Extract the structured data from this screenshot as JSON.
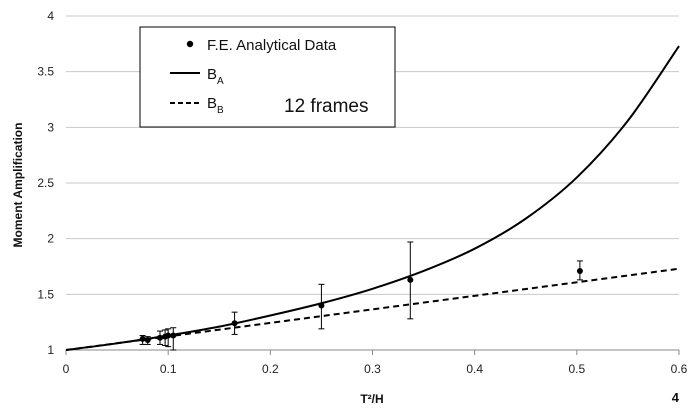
{
  "chart_data": {
    "type": "scatter",
    "xlabel": "T²/H",
    "ylabel": "Moment Amplification",
    "xlim": [
      0,
      0.6
    ],
    "ylim": [
      1,
      4
    ],
    "x_ticks": [
      "0",
      "0.1",
      "0.2",
      "0.3",
      "0.4",
      "0.5",
      "0.6"
    ],
    "y_ticks": [
      "1",
      "1.5",
      "2",
      "2.5",
      "3",
      "3.5",
      "4"
    ],
    "grid": "horizontal",
    "legend_position": "top-left",
    "series": [
      {
        "name": "F.E. Analytical Data",
        "kind": "points-with-error-bars",
        "points": [
          {
            "x": 0.075,
            "y": 1.1,
            "err_low": 1.05,
            "err_high": 1.13
          },
          {
            "x": 0.08,
            "y": 1.09,
            "err_low": 1.05,
            "err_high": 1.12
          },
          {
            "x": 0.092,
            "y": 1.11,
            "err_low": 1.05,
            "err_high": 1.17
          },
          {
            "x": 0.097,
            "y": 1.12,
            "err_low": 1.04,
            "err_high": 1.18
          },
          {
            "x": 0.1,
            "y": 1.13,
            "err_low": 1.03,
            "err_high": 1.19
          },
          {
            "x": 0.105,
            "y": 1.13,
            "err_low": 1.0,
            "err_high": 1.2
          },
          {
            "x": 0.165,
            "y": 1.24,
            "err_low": 1.14,
            "err_high": 1.34
          },
          {
            "x": 0.25,
            "y": 1.4,
            "err_low": 1.19,
            "err_high": 1.59
          },
          {
            "x": 0.337,
            "y": 1.63,
            "err_low": 1.28,
            "err_high": 1.97
          },
          {
            "x": 0.503,
            "y": 1.71,
            "err_low": 1.63,
            "err_high": 1.8
          }
        ]
      },
      {
        "name": "B",
        "subscript": "A",
        "kind": "line",
        "style": "solid",
        "x": [
          0,
          0.05,
          0.1,
          0.15,
          0.2,
          0.25,
          0.3,
          0.35,
          0.4,
          0.45,
          0.5,
          0.55,
          0.6
        ],
        "y": [
          1.0,
          1.06,
          1.13,
          1.21,
          1.31,
          1.42,
          1.55,
          1.71,
          1.91,
          2.18,
          2.55,
          3.06,
          3.73
        ]
      },
      {
        "name": "B",
        "subscript": "B",
        "kind": "line",
        "style": "dashed",
        "x": [
          0,
          0.6
        ],
        "y": [
          1.0,
          1.73
        ]
      }
    ],
    "annotation": "12 frames",
    "page_number": "4"
  },
  "colors": {
    "marks": "#000000",
    "grid": "#c8c8c8",
    "axis": "#888888"
  }
}
